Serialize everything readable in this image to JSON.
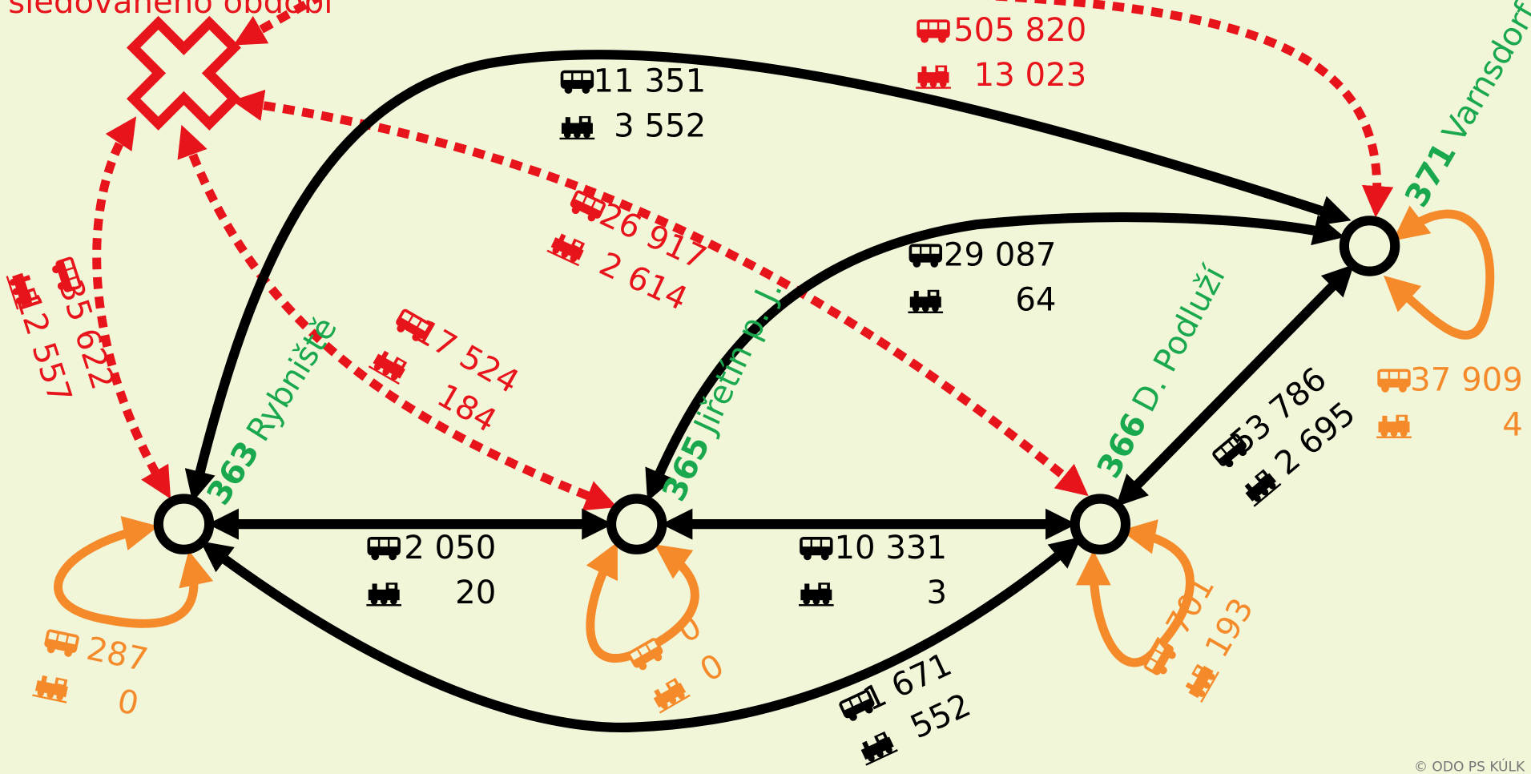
{
  "header_text": "sledovaného období",
  "nodes": [
    {
      "code": "363",
      "name": "Rybniště"
    },
    {
      "code": "365",
      "name": "Jiřetín p. J."
    },
    {
      "code": "366",
      "name": "D. Podluží"
    },
    {
      "code": "371",
      "name": "Varnsdorf"
    }
  ],
  "links": [
    {
      "bus": "2 050",
      "train": "20"
    },
    {
      "bus": "10 331",
      "train": "3"
    },
    {
      "bus": "53 786",
      "train": "2 695"
    },
    {
      "bus": "1 671",
      "train": "552"
    },
    {
      "bus": "29 087",
      "train": "64"
    },
    {
      "bus": "11 351",
      "train": "3 552"
    }
  ],
  "outside_links": [
    {
      "bus": "35 622",
      "train": "12 557"
    },
    {
      "bus": "17 524",
      "train": "184"
    },
    {
      "bus": "26 917",
      "train": "2 614"
    },
    {
      "bus": "505 820",
      "train": "13 023"
    }
  ],
  "internal": [
    {
      "bus": "287",
      "train": "0"
    },
    {
      "bus": "0",
      "train": "0"
    },
    {
      "bus": "7 701",
      "train": "193"
    },
    {
      "bus": "37 909",
      "train": "4"
    }
  ],
  "copyright": "© ODO PS KÚLK"
}
